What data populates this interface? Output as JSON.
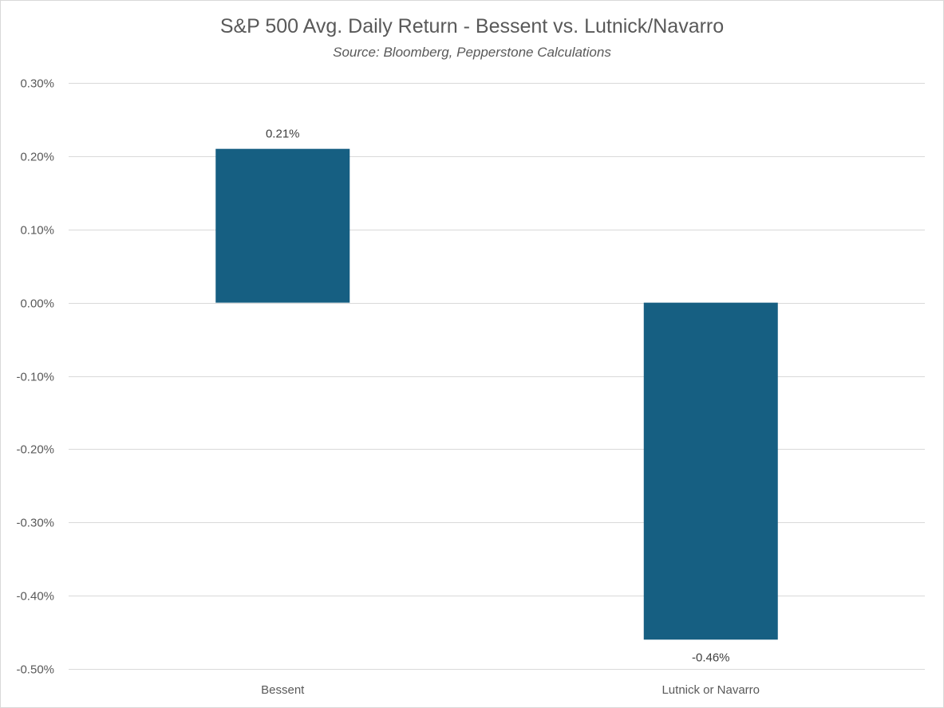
{
  "chart_data": {
    "type": "bar",
    "title": "S&P 500 Avg. Daily Return - Bessent vs. Lutnick/Navarro",
    "subtitle": "Source: Bloomberg, Pepperstone Calculations",
    "categories": [
      "Bessent",
      "Lutnick or Navarro"
    ],
    "values": [
      0.21,
      -0.46
    ],
    "data_labels": [
      "0.21%",
      "-0.46%"
    ],
    "ylim": [
      -0.5,
      0.3
    ],
    "yticks": [
      0.3,
      0.2,
      0.1,
      0.0,
      -0.1,
      -0.2,
      -0.3,
      -0.4,
      -0.5
    ],
    "ytick_labels": [
      "0.30%",
      "0.20%",
      "0.10%",
      "0.00%",
      "-0.10%",
      "-0.20%",
      "-0.30%",
      "-0.40%",
      "-0.50%"
    ],
    "unit": "%",
    "bar_color": "#165f82",
    "grid": true,
    "legend": "none"
  }
}
